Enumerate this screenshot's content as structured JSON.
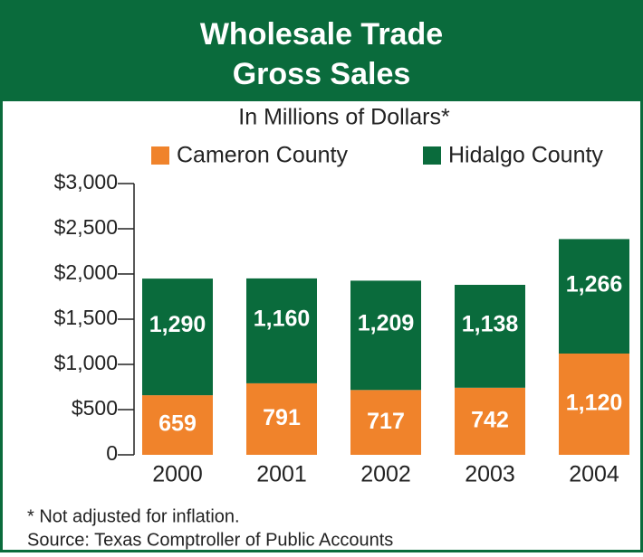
{
  "chart_data": {
    "type": "stacked_bar",
    "title": [
      "Wholesale Trade",
      "Gross Sales"
    ],
    "subtitle": "In Millions of Dollars*",
    "categories": [
      "2000",
      "2001",
      "2002",
      "2003",
      "2004"
    ],
    "series": [
      {
        "name": "Cameron County",
        "color": "#f0832b",
        "values": [
          659,
          791,
          717,
          742,
          1120
        ],
        "value_labels": [
          "659",
          "791",
          "717",
          "742",
          "1,120"
        ]
      },
      {
        "name": "Hidalgo County",
        "color": "#0a6b3c",
        "values": [
          1290,
          1160,
          1209,
          1138,
          1266
        ],
        "value_labels": [
          "1,290",
          "1,160",
          "1,209",
          "1,138",
          "1,266"
        ]
      }
    ],
    "ylim": [
      0,
      3000
    ],
    "yticks": [
      0,
      {
        "value": 500,
        "label": "$500"
      },
      {
        "value": 1000,
        "label": "$1,000"
      },
      {
        "value": 1500,
        "label": "$1,500"
      },
      {
        "value": 2000,
        "label": "$2,000"
      },
      {
        "value": 2500,
        "label": "$2,500"
      },
      {
        "value": 3000,
        "label": "$3,000"
      }
    ],
    "legend": "top",
    "notes": [
      "* Not adjusted for inflation.",
      "Source: Texas Comptroller of Public Accounts"
    ]
  }
}
